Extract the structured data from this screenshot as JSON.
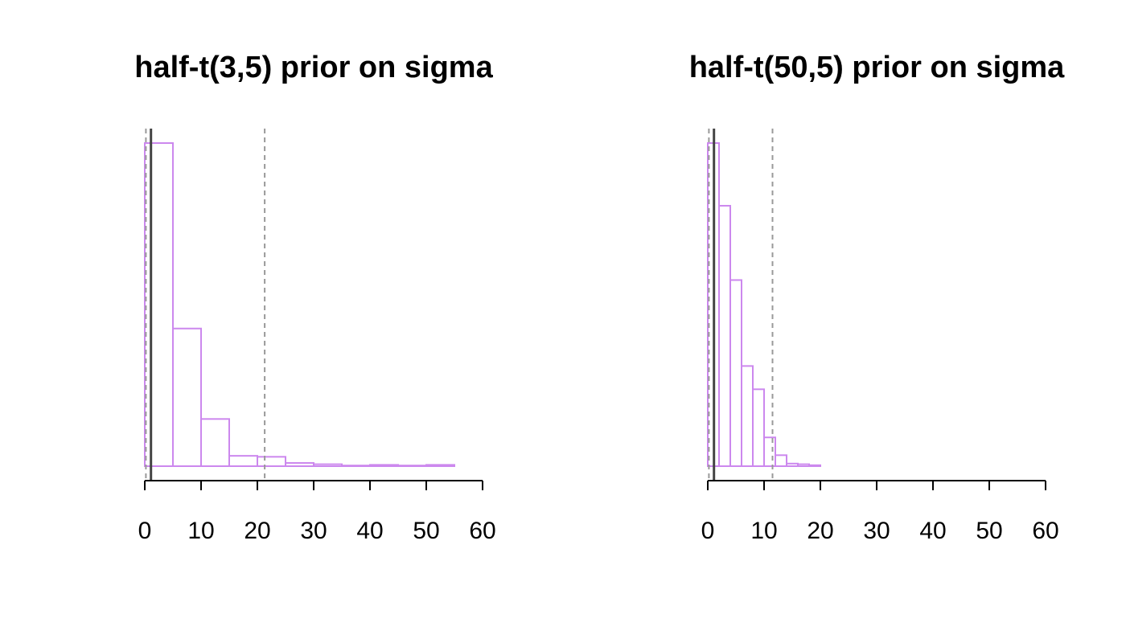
{
  "colors": {
    "bar_stroke": "#cc88ee",
    "dashed_line": "#999999",
    "solid_line": "#444444",
    "axis": "#000000"
  },
  "chart_data": [
    {
      "type": "bar",
      "title": "half-t(3,5) prior on sigma",
      "xlabel": "",
      "ylabel": "",
      "xlim": [
        0,
        60
      ],
      "ylim": [
        0,
        1
      ],
      "x_ticks": [
        0,
        10,
        20,
        30,
        40,
        50,
        60
      ],
      "x_tick_labels": [
        "0",
        "10",
        "20",
        "30",
        "40",
        "50",
        "60"
      ],
      "bins": [
        {
          "from": 0,
          "to": 5,
          "value": 1.0
        },
        {
          "from": 5,
          "to": 10,
          "value": 0.426
        },
        {
          "from": 10,
          "to": 15,
          "value": 0.146
        },
        {
          "from": 15,
          "to": 20,
          "value": 0.032
        },
        {
          "from": 20,
          "to": 25,
          "value": 0.029
        },
        {
          "from": 25,
          "to": 30,
          "value": 0.01
        },
        {
          "from": 30,
          "to": 35,
          "value": 0.006
        },
        {
          "from": 35,
          "to": 40,
          "value": 0.002
        },
        {
          "from": 40,
          "to": 45,
          "value": 0.004
        },
        {
          "from": 45,
          "to": 50,
          "value": 0.002
        },
        {
          "from": 50,
          "to": 55,
          "value": 0.004
        }
      ],
      "reference_lines": [
        {
          "x": 0.2,
          "style": "dashed"
        },
        {
          "x": 1.1,
          "style": "solid"
        },
        {
          "x": 21.3,
          "style": "dashed"
        }
      ],
      "grid": false
    },
    {
      "type": "bar",
      "title": "half-t(50,5) prior on sigma",
      "xlabel": "",
      "ylabel": "",
      "xlim": [
        0,
        60
      ],
      "ylim": [
        0,
        1
      ],
      "x_ticks": [
        0,
        10,
        20,
        30,
        40,
        50,
        60
      ],
      "x_tick_labels": [
        "0",
        "10",
        "20",
        "30",
        "40",
        "50",
        "60"
      ],
      "bins": [
        {
          "from": 0,
          "to": 2,
          "value": 1.0
        },
        {
          "from": 2,
          "to": 4,
          "value": 0.806
        },
        {
          "from": 4,
          "to": 6,
          "value": 0.576
        },
        {
          "from": 6,
          "to": 8,
          "value": 0.31
        },
        {
          "from": 8,
          "to": 10,
          "value": 0.238
        },
        {
          "from": 10,
          "to": 12,
          "value": 0.089
        },
        {
          "from": 12,
          "to": 14,
          "value": 0.034
        },
        {
          "from": 14,
          "to": 16,
          "value": 0.008
        },
        {
          "from": 16,
          "to": 18,
          "value": 0.006
        },
        {
          "from": 18,
          "to": 20,
          "value": 0.003
        }
      ],
      "reference_lines": [
        {
          "x": 0.2,
          "style": "dashed"
        },
        {
          "x": 1.1,
          "style": "solid"
        },
        {
          "x": 11.5,
          "style": "dashed"
        }
      ],
      "grid": false
    }
  ]
}
